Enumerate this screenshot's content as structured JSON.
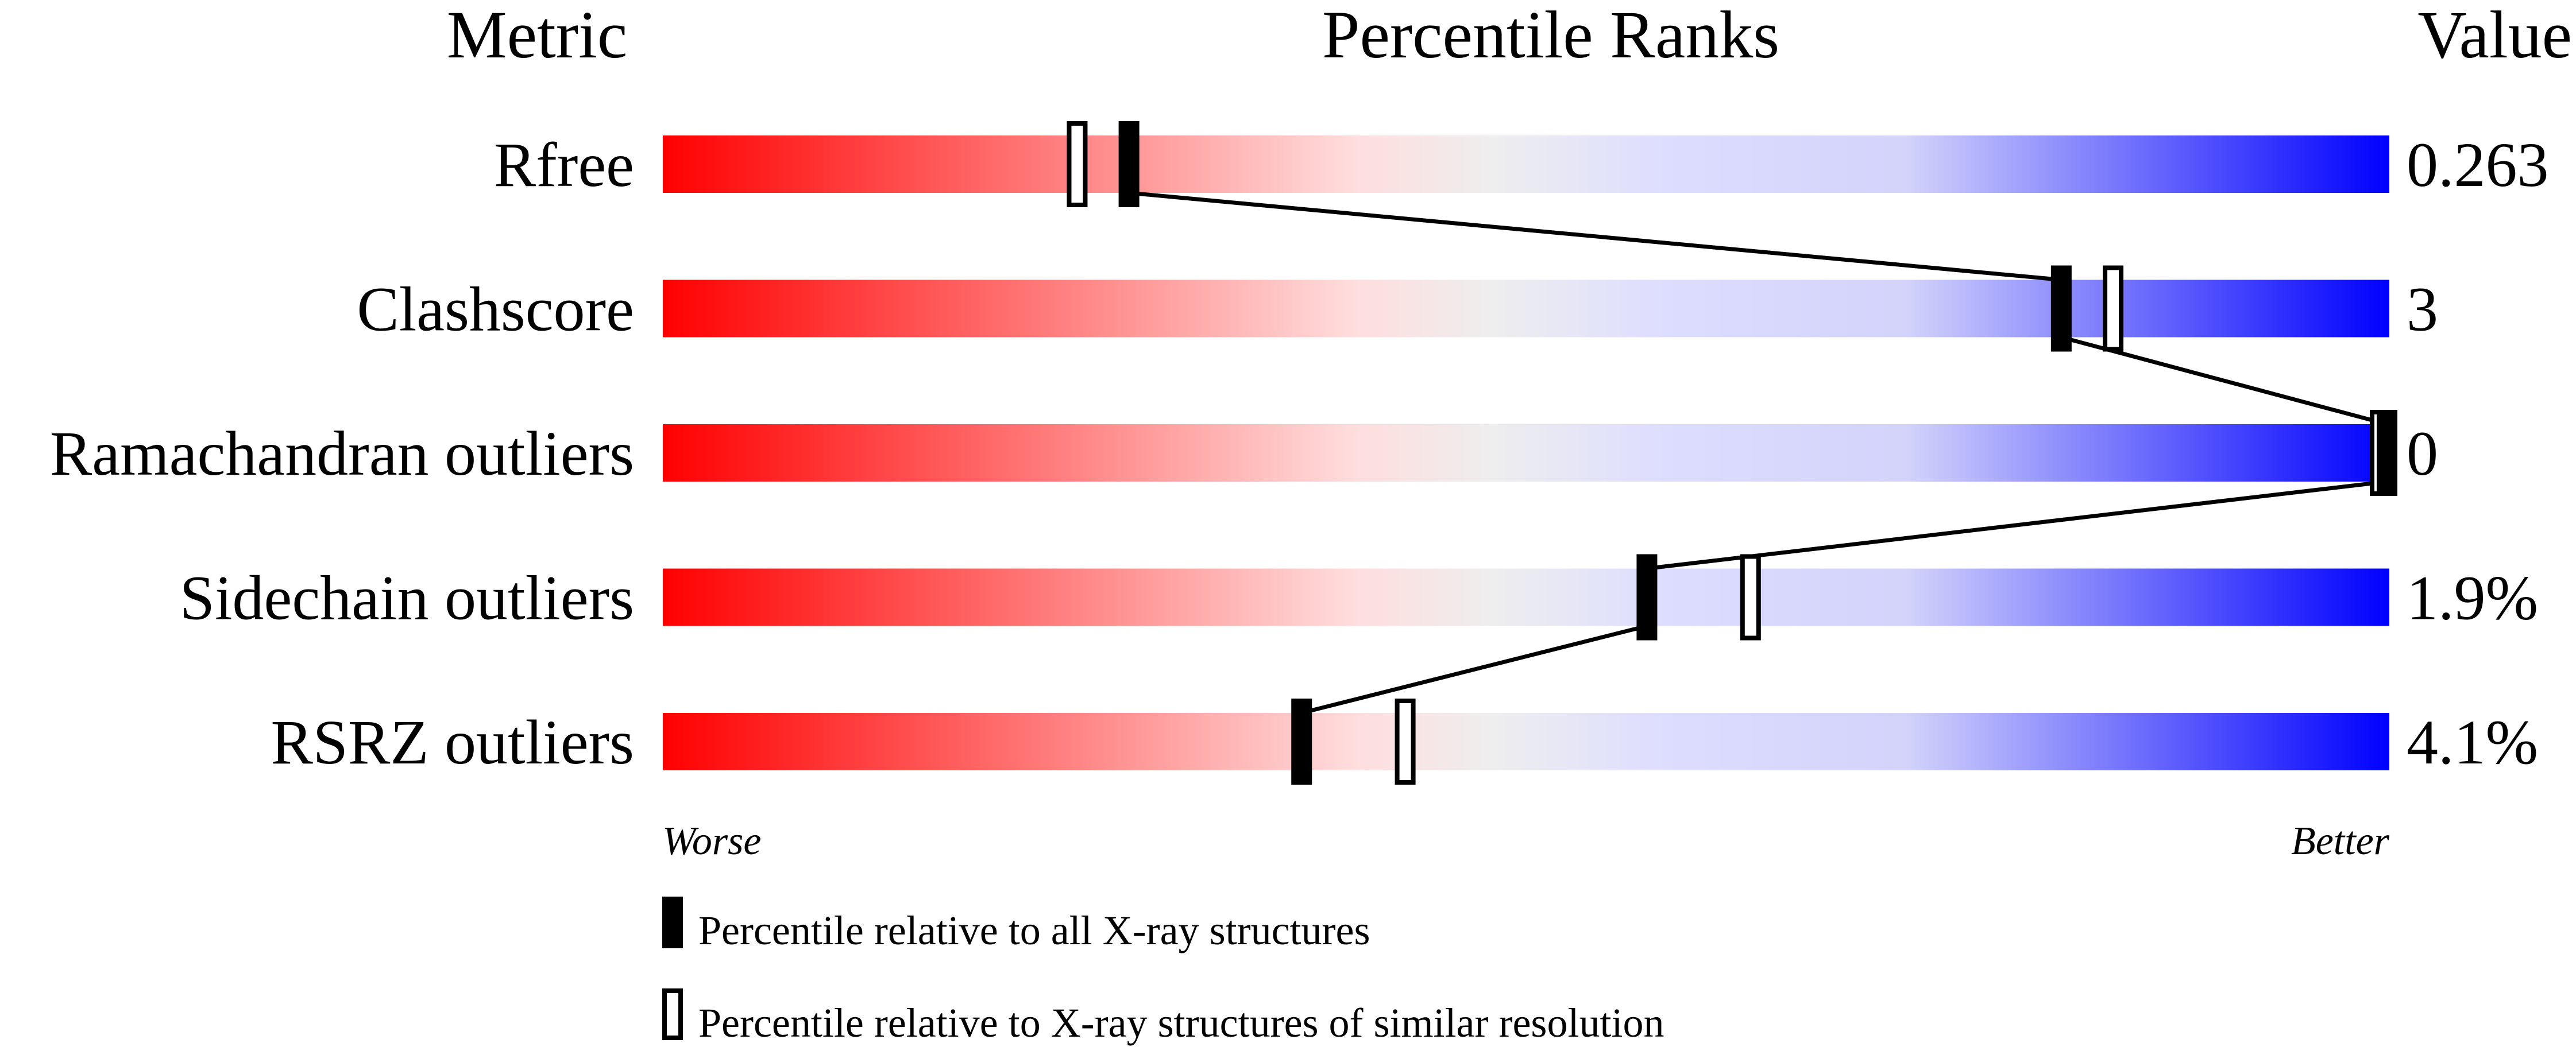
{
  "chart_data": {
    "type": "percentile-slider",
    "headers": {
      "metric": "Metric",
      "ranks": "Percentile Ranks",
      "value": "Value"
    },
    "xlim": [
      0,
      100
    ],
    "scale_labels": {
      "worse": "Worse",
      "better": "Better"
    },
    "gradient_colors": [
      "#ff0000",
      "#ffdddd",
      "#eeeeee",
      "#ddddff",
      "#d3d3fb",
      "#0000ff"
    ],
    "metrics": [
      {
        "name": "Rfree",
        "value": "0.263",
        "percentile_all": 27,
        "percentile_similar": 24
      },
      {
        "name": "Clashscore",
        "value": "3",
        "percentile_all": 81,
        "percentile_similar": 84
      },
      {
        "name": "Ramachandran outliers",
        "value": "0",
        "percentile_all": 100,
        "percentile_similar": 100
      },
      {
        "name": "Sidechain outliers",
        "value": "1.9%",
        "percentile_all": 57,
        "percentile_similar": 63
      },
      {
        "name": "RSRZ outliers",
        "value": "4.1%",
        "percentile_all": 37,
        "percentile_similar": 43
      }
    ],
    "legend": [
      {
        "marker": "filled",
        "label": "Percentile relative to all X-ray structures"
      },
      {
        "marker": "open",
        "label": "Percentile relative to X-ray structures of similar resolution"
      }
    ]
  }
}
